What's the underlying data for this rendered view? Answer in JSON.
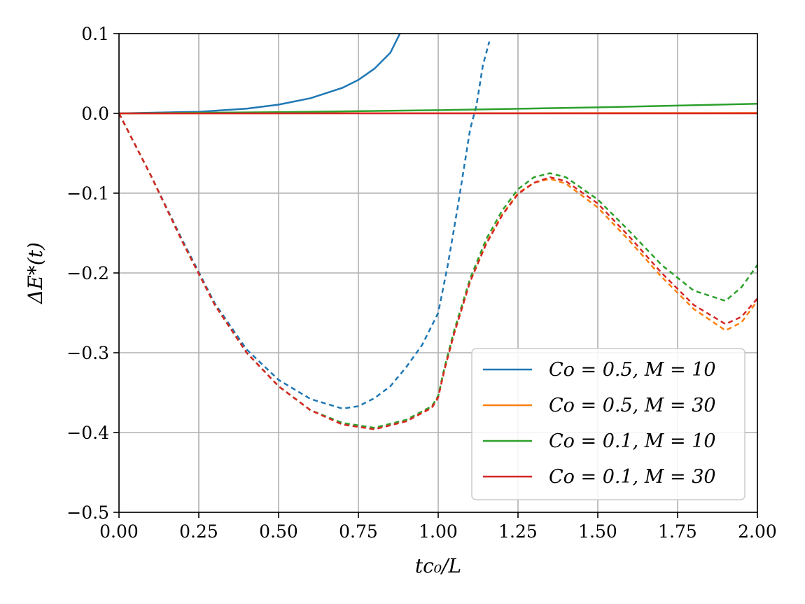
{
  "chart_data": {
    "type": "line",
    "title": "",
    "xlabel": "tc₀/L",
    "ylabel": "ΔE*(t)",
    "xlim": [
      0,
      2
    ],
    "ylim": [
      -0.5,
      0.1
    ],
    "xticks": [
      0,
      0.25,
      0.5,
      0.75,
      1.0,
      1.25,
      1.5,
      1.75,
      2.0
    ],
    "xtick_labels": [
      "0.00",
      "0.25",
      "0.50",
      "0.75",
      "1.00",
      "1.25",
      "1.50",
      "1.75",
      "2.00"
    ],
    "yticks": [
      -0.5,
      -0.4,
      -0.3,
      -0.2,
      -0.1,
      0.0,
      0.1
    ],
    "ytick_labels": [
      "−0.5",
      "−0.4",
      "−0.3",
      "−0.2",
      "−0.1",
      "0.0",
      "0.1"
    ],
    "grid": true,
    "legend_position": "lower-right",
    "series": [
      {
        "name": "Co = 0.5, M = 10",
        "color": "#1f77b4",
        "solid": [
          [
            0,
            0
          ],
          [
            0.25,
            0.002
          ],
          [
            0.4,
            0.006
          ],
          [
            0.5,
            0.011
          ],
          [
            0.6,
            0.019
          ],
          [
            0.7,
            0.032
          ],
          [
            0.75,
            0.042
          ],
          [
            0.8,
            0.056
          ],
          [
            0.85,
            0.076
          ],
          [
            0.88,
            0.1
          ]
        ],
        "dashed": [
          [
            0,
            0
          ],
          [
            0.1,
            -0.078
          ],
          [
            0.2,
            -0.16
          ],
          [
            0.3,
            -0.238
          ],
          [
            0.4,
            -0.296
          ],
          [
            0.5,
            -0.334
          ],
          [
            0.6,
            -0.358
          ],
          [
            0.7,
            -0.37
          ],
          [
            0.75,
            -0.367
          ],
          [
            0.8,
            -0.357
          ],
          [
            0.85,
            -0.342
          ],
          [
            0.9,
            -0.318
          ],
          [
            0.95,
            -0.29
          ],
          [
            1.0,
            -0.25
          ],
          [
            1.03,
            -0.19
          ],
          [
            1.06,
            -0.12
          ],
          [
            1.08,
            -0.07
          ],
          [
            1.1,
            -0.02
          ],
          [
            1.12,
            0.01
          ],
          [
            1.14,
            0.06
          ],
          [
            1.16,
            0.09
          ]
        ]
      },
      {
        "name": "Co = 0.5, M = 30",
        "color": "#ff7f0e",
        "solid": [
          [
            0,
            0
          ],
          [
            2,
            0.0005
          ]
        ],
        "dashed": [
          [
            0,
            0
          ],
          [
            0.1,
            -0.078
          ],
          [
            0.2,
            -0.162
          ],
          [
            0.3,
            -0.24
          ],
          [
            0.4,
            -0.3
          ],
          [
            0.5,
            -0.342
          ],
          [
            0.6,
            -0.372
          ],
          [
            0.7,
            -0.389
          ],
          [
            0.8,
            -0.395
          ],
          [
            0.9,
            -0.385
          ],
          [
            0.98,
            -0.368
          ],
          [
            1.0,
            -0.355
          ],
          [
            1.02,
            -0.32
          ],
          [
            1.05,
            -0.275
          ],
          [
            1.1,
            -0.21
          ],
          [
            1.15,
            -0.163
          ],
          [
            1.2,
            -0.127
          ],
          [
            1.25,
            -0.1
          ],
          [
            1.3,
            -0.087
          ],
          [
            1.35,
            -0.082
          ],
          [
            1.4,
            -0.088
          ],
          [
            1.5,
            -0.118
          ],
          [
            1.6,
            -0.16
          ],
          [
            1.7,
            -0.205
          ],
          [
            1.8,
            -0.245
          ],
          [
            1.9,
            -0.272
          ],
          [
            1.95,
            -0.262
          ],
          [
            2.0,
            -0.235
          ]
        ]
      },
      {
        "name": "Co = 0.1, M = 10",
        "color": "#2ca02c",
        "solid": [
          [
            0,
            0
          ],
          [
            0.5,
            0.0015
          ],
          [
            1.0,
            0.004
          ],
          [
            1.5,
            0.0075
          ],
          [
            2.0,
            0.012
          ]
        ],
        "dashed": [
          [
            0,
            0
          ],
          [
            0.1,
            -0.078
          ],
          [
            0.2,
            -0.162
          ],
          [
            0.3,
            -0.24
          ],
          [
            0.4,
            -0.3
          ],
          [
            0.5,
            -0.342
          ],
          [
            0.6,
            -0.372
          ],
          [
            0.7,
            -0.388
          ],
          [
            0.8,
            -0.394
          ],
          [
            0.9,
            -0.384
          ],
          [
            0.98,
            -0.367
          ],
          [
            1.0,
            -0.354
          ],
          [
            1.02,
            -0.318
          ],
          [
            1.05,
            -0.272
          ],
          [
            1.1,
            -0.207
          ],
          [
            1.15,
            -0.158
          ],
          [
            1.2,
            -0.122
          ],
          [
            1.25,
            -0.095
          ],
          [
            1.3,
            -0.08
          ],
          [
            1.35,
            -0.075
          ],
          [
            1.4,
            -0.08
          ],
          [
            1.5,
            -0.108
          ],
          [
            1.6,
            -0.148
          ],
          [
            1.7,
            -0.19
          ],
          [
            1.8,
            -0.222
          ],
          [
            1.9,
            -0.235
          ],
          [
            1.95,
            -0.218
          ],
          [
            2.0,
            -0.19
          ]
        ]
      },
      {
        "name": "Co = 0.1, M = 30",
        "color": "#d62728",
        "solid": [
          [
            0,
            0
          ],
          [
            2,
            0.0
          ]
        ],
        "dashed": [
          [
            0,
            0
          ],
          [
            0.1,
            -0.078
          ],
          [
            0.2,
            -0.162
          ],
          [
            0.3,
            -0.24
          ],
          [
            0.4,
            -0.3
          ],
          [
            0.5,
            -0.342
          ],
          [
            0.6,
            -0.372
          ],
          [
            0.7,
            -0.39
          ],
          [
            0.8,
            -0.396
          ],
          [
            0.9,
            -0.386
          ],
          [
            0.98,
            -0.369
          ],
          [
            1.0,
            -0.356
          ],
          [
            1.02,
            -0.321
          ],
          [
            1.05,
            -0.276
          ],
          [
            1.1,
            -0.211
          ],
          [
            1.15,
            -0.164
          ],
          [
            1.2,
            -0.128
          ],
          [
            1.25,
            -0.101
          ],
          [
            1.3,
            -0.087
          ],
          [
            1.35,
            -0.08
          ],
          [
            1.4,
            -0.085
          ],
          [
            1.5,
            -0.113
          ],
          [
            1.6,
            -0.155
          ],
          [
            1.7,
            -0.2
          ],
          [
            1.8,
            -0.24
          ],
          [
            1.9,
            -0.264
          ],
          [
            1.95,
            -0.255
          ],
          [
            2.0,
            -0.232
          ]
        ]
      }
    ]
  }
}
